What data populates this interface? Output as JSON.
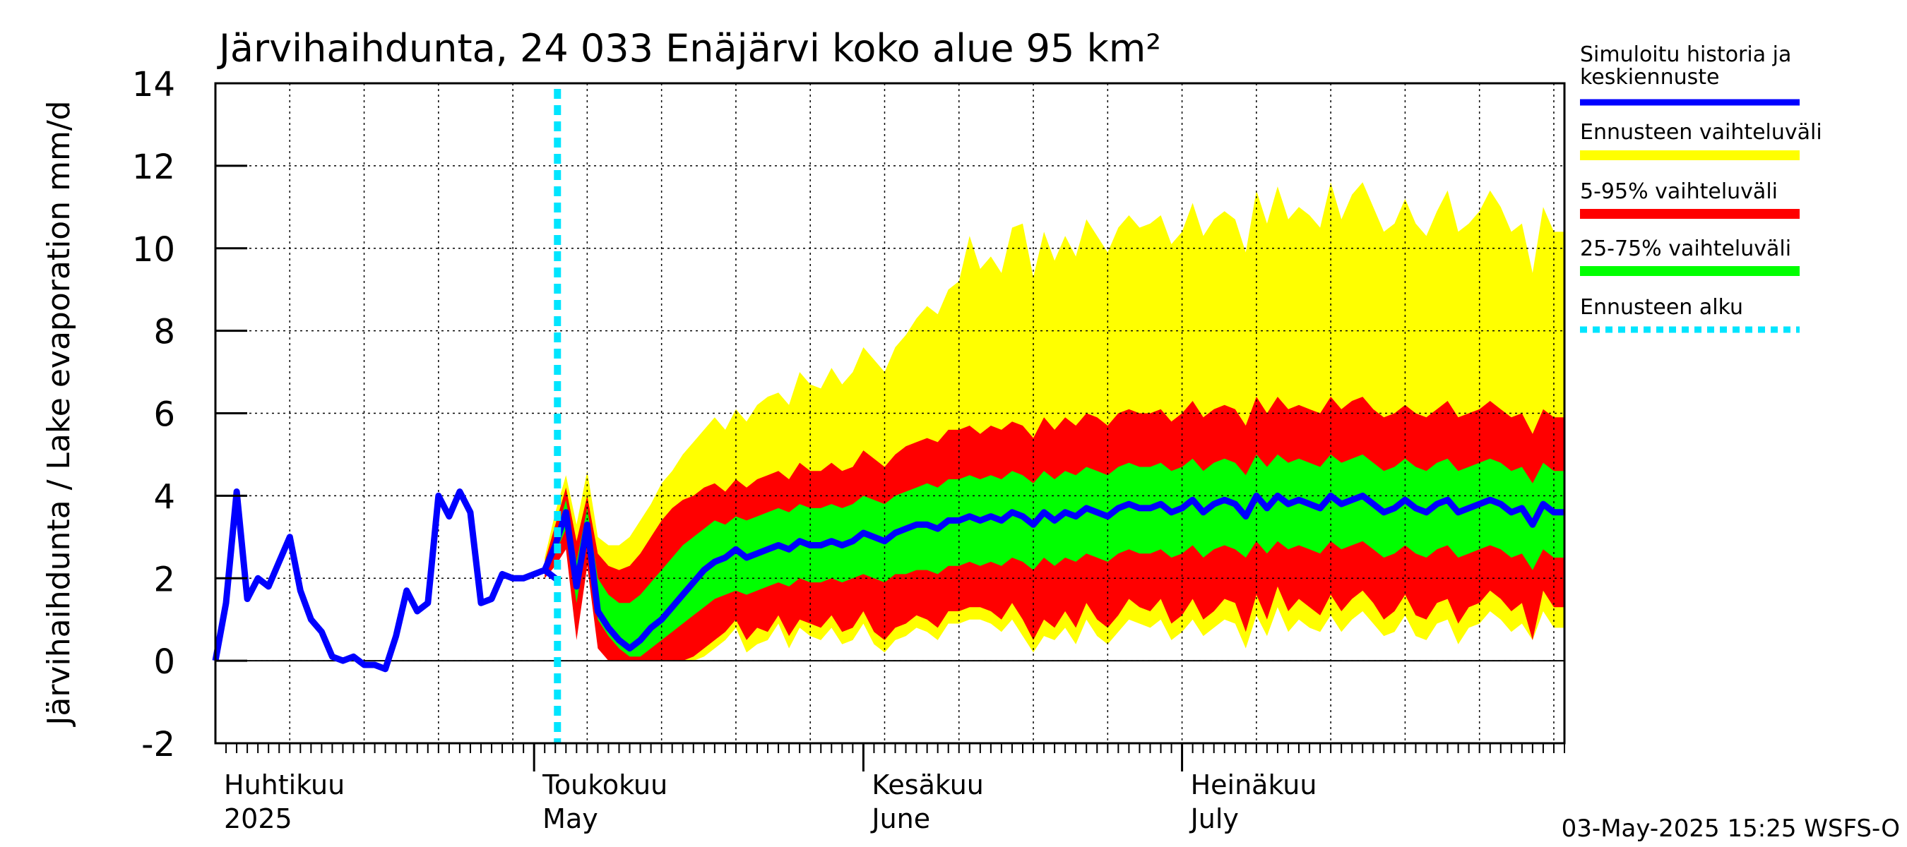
{
  "chart_data": {
    "type": "area",
    "title": "Järvihaihdunta, 24 033 Enäjärvi koko alue 95 km²",
    "ylabel": "Järvihaihdunta / Lake evaporation   mm/d",
    "ylim": [
      -2,
      14
    ],
    "yticks": [
      -2,
      0,
      2,
      4,
      6,
      8,
      10,
      12,
      14
    ],
    "xlim_days": [
      0,
      127
    ],
    "grid": true,
    "legend_position": "right",
    "footer": "03-May-2025 15:25 WSFS-O",
    "months": [
      {
        "fi": "Huhtikuu",
        "en": "2025",
        "day": 0
      },
      {
        "fi": "Toukokuu",
        "en": "May",
        "day": 30
      },
      {
        "fi": "Kesäkuu",
        "en": "June",
        "day": 61
      },
      {
        "fi": "Heinäkuu",
        "en": "July",
        "day": 91
      }
    ],
    "forecast_start_day": 32.2,
    "legend": [
      {
        "key": "history",
        "label": "Simuloitu historia ja keskiennuste",
        "color": "#0000ff"
      },
      {
        "key": "range",
        "label": "Ennusteen vaihteluväli",
        "color": "#ffff00"
      },
      {
        "key": "p5_95",
        "label": "5-95% vaihteluväli",
        "color": "#ff0000"
      },
      {
        "key": "p25_75",
        "label": "25-75% vaihteluväli",
        "color": "#00ff00"
      },
      {
        "key": "start",
        "label": "Ennusteen alku",
        "color": "#00e5ff"
      }
    ],
    "forecast_days": [
      31,
      32,
      33,
      34,
      35,
      36,
      37,
      38,
      39,
      40,
      41,
      42,
      43,
      44,
      45,
      46,
      47,
      48,
      49,
      50,
      51,
      52,
      53,
      54,
      55,
      56,
      57,
      58,
      59,
      60,
      61,
      62,
      63,
      64,
      65,
      66,
      67,
      68,
      69,
      70,
      71,
      72,
      73,
      74,
      75,
      76,
      77,
      78,
      79,
      80,
      81,
      82,
      83,
      84,
      85,
      86,
      87,
      88,
      89,
      90,
      91,
      92,
      93,
      94,
      95,
      96,
      97,
      98,
      99,
      100,
      101,
      102,
      103,
      104,
      105,
      106,
      107,
      108,
      109,
      110,
      111,
      112,
      113,
      114,
      115,
      116,
      117,
      118,
      119,
      120,
      121,
      122,
      123,
      124,
      125,
      126,
      127
    ],
    "series": [
      {
        "name": "min",
        "values": [
          2.0,
          2.5,
          3.0,
          0.6,
          2.6,
          0.4,
          0.0,
          0.0,
          0.0,
          0.0,
          0.0,
          0.0,
          0.0,
          0.0,
          0.0,
          0.1,
          0.3,
          0.5,
          0.8,
          0.2,
          0.4,
          0.5,
          0.9,
          0.3,
          0.8,
          0.6,
          0.5,
          0.8,
          0.4,
          0.5,
          0.9,
          0.4,
          0.2,
          0.5,
          0.6,
          0.8,
          0.7,
          0.5,
          0.9,
          0.9,
          1.0,
          1.0,
          0.9,
          0.7,
          1.0,
          0.6,
          0.2,
          0.6,
          0.5,
          0.8,
          0.4,
          1.0,
          0.6,
          0.4,
          0.7,
          1.0,
          0.9,
          0.8,
          1.0,
          0.5,
          0.7,
          1.0,
          0.6,
          0.8,
          1.0,
          0.9,
          0.3,
          1.1,
          0.6,
          1.3,
          0.7,
          1.0,
          0.8,
          0.7,
          1.1,
          0.7,
          1.0,
          1.2,
          0.9,
          0.6,
          0.7,
          1.1,
          0.6,
          0.5,
          0.9,
          1.0,
          0.4,
          0.8,
          0.9,
          1.2,
          1.0,
          0.7,
          0.9,
          0.5,
          1.2,
          0.8,
          0.8
        ]
      },
      {
        "name": "p5",
        "values": [
          2.0,
          2.3,
          2.7,
          0.5,
          2.3,
          0.3,
          0.0,
          0.0,
          0.0,
          0.0,
          0.0,
          0.0,
          0.0,
          0.0,
          0.1,
          0.3,
          0.5,
          0.7,
          1.0,
          0.5,
          0.8,
          0.7,
          1.1,
          0.6,
          1.0,
          0.9,
          0.8,
          1.1,
          0.7,
          0.8,
          1.2,
          0.7,
          0.5,
          0.8,
          0.9,
          1.1,
          1.0,
          0.8,
          1.2,
          1.2,
          1.3,
          1.3,
          1.2,
          1.0,
          1.4,
          1.0,
          0.5,
          1.0,
          0.8,
          1.2,
          0.8,
          1.4,
          1.0,
          0.8,
          1.1,
          1.5,
          1.3,
          1.2,
          1.5,
          0.9,
          1.1,
          1.5,
          1.0,
          1.2,
          1.5,
          1.4,
          0.7,
          1.6,
          1.0,
          1.8,
          1.2,
          1.5,
          1.3,
          1.1,
          1.6,
          1.2,
          1.5,
          1.7,
          1.4,
          1.0,
          1.2,
          1.6,
          1.1,
          1.0,
          1.4,
          1.5,
          0.9,
          1.3,
          1.4,
          1.7,
          1.5,
          1.2,
          1.4,
          0.5,
          1.7,
          1.3,
          1.3
        ]
      },
      {
        "name": "p25",
        "values": [
          2.1,
          2.6,
          3.2,
          1.4,
          3.0,
          1.0,
          0.6,
          0.3,
          0.1,
          0.1,
          0.3,
          0.5,
          0.7,
          0.9,
          1.1,
          1.3,
          1.5,
          1.6,
          1.7,
          1.6,
          1.7,
          1.8,
          1.9,
          1.8,
          2.0,
          1.9,
          1.9,
          2.0,
          1.9,
          2.0,
          2.1,
          2.0,
          1.9,
          2.1,
          2.1,
          2.2,
          2.2,
          2.1,
          2.3,
          2.3,
          2.4,
          2.3,
          2.4,
          2.3,
          2.5,
          2.4,
          2.2,
          2.5,
          2.3,
          2.5,
          2.4,
          2.6,
          2.5,
          2.4,
          2.6,
          2.7,
          2.6,
          2.6,
          2.7,
          2.5,
          2.6,
          2.8,
          2.5,
          2.7,
          2.8,
          2.7,
          2.5,
          2.9,
          2.6,
          2.9,
          2.7,
          2.8,
          2.7,
          2.6,
          2.9,
          2.7,
          2.8,
          2.9,
          2.7,
          2.5,
          2.6,
          2.8,
          2.6,
          2.5,
          2.7,
          2.8,
          2.5,
          2.6,
          2.7,
          2.8,
          2.7,
          2.5,
          2.6,
          2.2,
          2.7,
          2.5,
          2.5
        ]
      },
      {
        "name": "median",
        "values": [
          2.2,
          2.8,
          3.6,
          1.8,
          3.3,
          1.2,
          0.8,
          0.5,
          0.3,
          0.5,
          0.8,
          1.0,
          1.3,
          1.6,
          1.9,
          2.2,
          2.4,
          2.5,
          2.7,
          2.5,
          2.6,
          2.7,
          2.8,
          2.7,
          2.9,
          2.8,
          2.8,
          2.9,
          2.8,
          2.9,
          3.1,
          3.0,
          2.9,
          3.1,
          3.2,
          3.3,
          3.3,
          3.2,
          3.4,
          3.4,
          3.5,
          3.4,
          3.5,
          3.4,
          3.6,
          3.5,
          3.3,
          3.6,
          3.4,
          3.6,
          3.5,
          3.7,
          3.6,
          3.5,
          3.7,
          3.8,
          3.7,
          3.7,
          3.8,
          3.6,
          3.7,
          3.9,
          3.6,
          3.8,
          3.9,
          3.8,
          3.5,
          4.0,
          3.7,
          4.0,
          3.8,
          3.9,
          3.8,
          3.7,
          4.0,
          3.8,
          3.9,
          4.0,
          3.8,
          3.6,
          3.7,
          3.9,
          3.7,
          3.6,
          3.8,
          3.9,
          3.6,
          3.7,
          3.8,
          3.9,
          3.8,
          3.6,
          3.7,
          3.3,
          3.8,
          3.6,
          3.6
        ]
      },
      {
        "name": "p75",
        "values": [
          2.3,
          3.0,
          3.9,
          2.4,
          3.7,
          2.0,
          1.6,
          1.4,
          1.4,
          1.6,
          1.9,
          2.2,
          2.5,
          2.8,
          3.0,
          3.2,
          3.4,
          3.3,
          3.5,
          3.4,
          3.5,
          3.6,
          3.7,
          3.6,
          3.8,
          3.7,
          3.7,
          3.8,
          3.7,
          3.8,
          4.0,
          3.9,
          3.8,
          4.0,
          4.1,
          4.2,
          4.3,
          4.2,
          4.4,
          4.4,
          4.5,
          4.4,
          4.5,
          4.4,
          4.6,
          4.5,
          4.3,
          4.6,
          4.4,
          4.6,
          4.5,
          4.7,
          4.6,
          4.5,
          4.7,
          4.8,
          4.7,
          4.7,
          4.8,
          4.6,
          4.7,
          4.9,
          4.6,
          4.8,
          4.9,
          4.8,
          4.5,
          5.0,
          4.7,
          5.0,
          4.8,
          4.9,
          4.8,
          4.7,
          5.0,
          4.8,
          4.9,
          5.0,
          4.8,
          4.6,
          4.7,
          4.9,
          4.7,
          4.6,
          4.8,
          4.9,
          4.6,
          4.7,
          4.8,
          4.9,
          4.8,
          4.6,
          4.7,
          4.3,
          4.8,
          4.6,
          4.6
        ]
      },
      {
        "name": "p95",
        "values": [
          2.4,
          3.3,
          4.2,
          2.9,
          4.0,
          2.6,
          2.3,
          2.2,
          2.3,
          2.6,
          3.0,
          3.4,
          3.7,
          3.9,
          4.0,
          4.2,
          4.3,
          4.1,
          4.4,
          4.2,
          4.4,
          4.5,
          4.6,
          4.4,
          4.8,
          4.6,
          4.6,
          4.8,
          4.6,
          4.7,
          5.1,
          4.9,
          4.7,
          5.0,
          5.2,
          5.3,
          5.4,
          5.3,
          5.6,
          5.6,
          5.7,
          5.5,
          5.7,
          5.6,
          5.8,
          5.7,
          5.4,
          5.9,
          5.6,
          5.9,
          5.7,
          6.0,
          5.9,
          5.7,
          6.0,
          6.1,
          6.0,
          6.0,
          6.1,
          5.8,
          6.0,
          6.3,
          5.9,
          6.1,
          6.2,
          6.1,
          5.7,
          6.4,
          6.0,
          6.4,
          6.1,
          6.2,
          6.1,
          6.0,
          6.4,
          6.1,
          6.3,
          6.4,
          6.1,
          5.9,
          6.0,
          6.2,
          6.0,
          5.9,
          6.1,
          6.3,
          5.9,
          6.0,
          6.1,
          6.3,
          6.1,
          5.9,
          6.0,
          5.5,
          6.1,
          5.9,
          5.9
        ]
      },
      {
        "name": "max",
        "values": [
          2.5,
          3.6,
          4.5,
          3.3,
          4.6,
          3.0,
          2.8,
          2.8,
          3.0,
          3.4,
          3.8,
          4.3,
          4.6,
          5.0,
          5.3,
          5.6,
          5.9,
          5.6,
          6.1,
          5.8,
          6.2,
          6.4,
          6.5,
          6.2,
          7.0,
          6.7,
          6.6,
          7.1,
          6.7,
          7.0,
          7.6,
          7.3,
          7.0,
          7.6,
          7.9,
          8.3,
          8.6,
          8.4,
          9.0,
          9.2,
          10.3,
          9.5,
          9.8,
          9.4,
          10.5,
          10.6,
          9.3,
          10.4,
          9.7,
          10.3,
          9.8,
          10.7,
          10.3,
          9.9,
          10.5,
          10.8,
          10.5,
          10.6,
          10.8,
          10.1,
          10.4,
          11.1,
          10.3,
          10.7,
          10.9,
          10.7,
          9.9,
          11.4,
          10.6,
          11.5,
          10.7,
          11.0,
          10.8,
          10.5,
          11.6,
          10.7,
          11.3,
          11.6,
          11.0,
          10.4,
          10.6,
          11.2,
          10.6,
          10.3,
          10.9,
          11.4,
          10.4,
          10.6,
          10.9,
          11.4,
          11.0,
          10.4,
          10.6,
          9.4,
          11.0,
          10.4,
          10.4
        ]
      }
    ],
    "history_days": [
      0,
      1,
      2,
      3,
      4,
      5,
      6,
      7,
      8,
      9,
      10,
      11,
      12,
      13,
      14,
      15,
      16,
      17,
      18,
      19,
      20,
      21,
      22,
      23,
      24,
      25,
      26,
      27,
      28,
      29,
      30,
      31,
      32
    ],
    "history_values": [
      0.0,
      1.4,
      4.1,
      1.5,
      2.0,
      1.8,
      2.4,
      3.0,
      1.7,
      1.0,
      0.7,
      0.1,
      0.0,
      0.1,
      -0.1,
      -0.1,
      -0.2,
      0.6,
      1.7,
      1.2,
      1.4,
      4.0,
      3.5,
      4.1,
      3.6,
      1.4,
      1.5,
      2.1,
      2.0,
      2.0,
      2.1,
      2.2,
      2.0
    ]
  }
}
